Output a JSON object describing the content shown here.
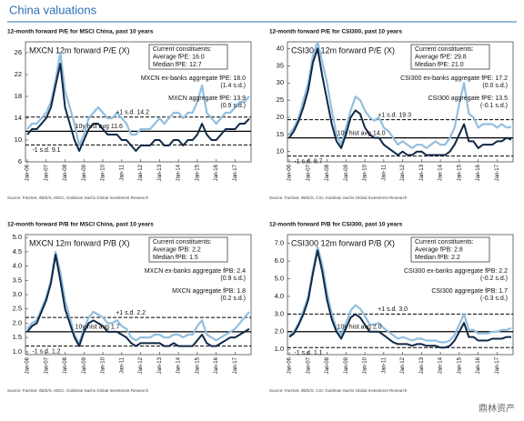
{
  "title": "China valuations",
  "watermark": "鼎林资产",
  "chart_data": [
    {
      "type": "line",
      "heading": "12-month forward P/E for MSCI China, past 10 years",
      "title": "MXCN 12m forward  P/E (X)",
      "source": "Source: FactSet, I/B/E/S, MSCI, Goldman Sachs Global Investment Research",
      "categories": [
        "Jan-06",
        null,
        null,
        null,
        "Jan-07",
        null,
        null,
        null,
        "Jan-08",
        null,
        null,
        null,
        "Jan-09",
        null,
        null,
        null,
        "Jan-10",
        null,
        null,
        null,
        "Jan-11",
        null,
        null,
        null,
        "Jan-12",
        null,
        null,
        null,
        "Jan-13",
        null,
        null,
        null,
        "Jan-14",
        null,
        null,
        null,
        "Jan-15",
        null,
        null,
        null,
        "Jan-16",
        null,
        null,
        null,
        "Jan-17",
        null,
        null,
        null
      ],
      "ylim": [
        6,
        28
      ],
      "yticks": [
        6,
        10,
        14,
        18,
        22,
        26
      ],
      "series": [
        {
          "color": "#93bfdf",
          "values": [
            12,
            13,
            13,
            14,
            15,
            17,
            21,
            26,
            19,
            16,
            13,
            9,
            11,
            14,
            15,
            16,
            15,
            14,
            14,
            15,
            14,
            13,
            11,
            11,
            12,
            12,
            12,
            13,
            14,
            13,
            14,
            15,
            15,
            14,
            15,
            15,
            17,
            20,
            15,
            14,
            13,
            14,
            15,
            15,
            16,
            17,
            17,
            18
          ]
        },
        {
          "color": "#0f2846",
          "values": [
            11,
            12,
            12,
            13,
            14,
            16,
            20,
            24,
            16,
            13,
            10,
            8,
            10,
            12,
            13,
            13,
            12,
            11,
            11,
            11,
            10,
            10,
            9,
            8,
            9,
            9,
            9,
            10,
            10,
            9,
            9,
            10,
            10,
            9,
            10,
            10,
            11,
            13,
            11,
            10,
            10,
            11,
            12,
            12,
            12,
            13,
            13,
            13.9
          ]
        }
      ],
      "reference_lines": [
        {
          "value": 11.6,
          "label": "10y hist  avg  11.6",
          "style": "solid"
        },
        {
          "value": 14.2,
          "label": "+1 s.d.  14.2",
          "style": "dashed"
        },
        {
          "value": 9.1,
          "label": "-1 s.d.  9.1",
          "style": "dashed"
        }
      ],
      "annotations": {
        "box": [
          "Current constituents:",
          "Average fPE:  16.0",
          "Median fPE:  12.7"
        ],
        "callouts": [
          "MXCN ex-banks aggregate fPE:  18.0",
          "(1.4 s.d.)",
          "MXCN aggregate fPE:  13.9",
          "(0.9 s.d.)"
        ]
      }
    },
    {
      "type": "line",
      "heading": "12-month forward P/E for CSI300, past 10 years",
      "title": "CSI300 12m forward  P/E (X)",
      "source": "Source: FactSet, I/B/E/S, CSI, Goldman Sachs Global Investment Research",
      "categories": [
        "Jan-06",
        null,
        null,
        null,
        "Jan-07",
        null,
        null,
        null,
        "Jan-08",
        null,
        null,
        null,
        "Jan-09",
        null,
        null,
        null,
        "Jan-10",
        null,
        null,
        null,
        "Jan-11",
        null,
        null,
        null,
        "Jan-12",
        null,
        null,
        null,
        "Jan-13",
        null,
        null,
        null,
        "Jan-14",
        null,
        null,
        null,
        "Jan-15",
        null,
        null,
        null,
        "Jan-16",
        null,
        null,
        null,
        "Jan-17",
        null,
        null,
        null
      ],
      "ylim": [
        7,
        42
      ],
      "yticks": [
        10,
        15,
        20,
        25,
        30,
        35,
        40
      ],
      "series": [
        {
          "color": "#93bfdf",
          "values": [
            15,
            17,
            20,
            25,
            30,
            38,
            42,
            36,
            30,
            22,
            15,
            12,
            17,
            22,
            26,
            25,
            22,
            20,
            19,
            20,
            17,
            16,
            14,
            12,
            13,
            12,
            11,
            12,
            12,
            11,
            12,
            13,
            12,
            12,
            14,
            17,
            24,
            30,
            21,
            20,
            17,
            18,
            18,
            18,
            17,
            18,
            17,
            17.2
          ]
        },
        {
          "color": "#0f2846",
          "values": [
            14,
            16,
            19,
            23,
            28,
            36,
            40,
            32,
            25,
            18,
            13,
            11,
            15,
            20,
            22,
            21,
            17,
            15,
            14,
            14,
            12,
            11,
            10,
            9,
            10,
            9,
            9,
            10,
            10,
            9,
            9,
            9,
            9,
            9,
            10,
            12,
            15,
            18,
            13,
            13,
            11,
            12,
            12,
            12,
            13,
            13,
            14,
            13.5
          ]
        }
      ],
      "reference_lines": [
        {
          "value": 14.0,
          "label": "10y hist  avg  14.0",
          "style": "solid"
        },
        {
          "value": 19.3,
          "label": "+1 s.d.  19.3",
          "style": "dashed"
        },
        {
          "value": 8.7,
          "label": "-1 s.d.  8.7",
          "style": "dashed"
        }
      ],
      "annotations": {
        "box": [
          "Current constituents:",
          "Average fPE:  29.8",
          "Median fPE:  21.0"
        ],
        "callouts": [
          "CSI300 ex-banks aggregate fPE:  17.2",
          "(0.0 s.d.)",
          "CSI300 aggregate fPE:  13.5",
          "(-0.1 s.d.)"
        ]
      }
    },
    {
      "type": "line",
      "heading": "12-month forward P/B for MSCI China, past 10 years",
      "title": "MXCN 12m forward  P/B (X)",
      "source": "Source: FactSet, I/B/E/S, MSCI, Goldman Sachs Global Investment Research",
      "categories": [
        "Jan-06",
        null,
        null,
        null,
        "Jan-07",
        null,
        null,
        null,
        "Jan-08",
        null,
        null,
        null,
        "Jan-09",
        null,
        null,
        null,
        "Jan-10",
        null,
        null,
        null,
        "Jan-11",
        null,
        null,
        null,
        "Jan-12",
        null,
        null,
        null,
        "Jan-13",
        null,
        null,
        null,
        "Jan-14",
        null,
        null,
        null,
        "Jan-15",
        null,
        null,
        null,
        "Jan-16",
        null,
        null,
        null,
        "Jan-17",
        null,
        null,
        null
      ],
      "ylim": [
        0.9,
        5.1
      ],
      "yticks": [
        {
          "value": 1,
          "label": "1.0"
        },
        1.5,
        {
          "value": 2,
          "label": "2.0"
        },
        2.5,
        {
          "value": 3,
          "label": "3.0"
        },
        3.5,
        {
          "value": 4,
          "label": "4.0"
        },
        4.5,
        {
          "value": 5,
          "label": "5.0"
        }
      ],
      "series": [
        {
          "color": "#93bfdf",
          "values": [
            1.8,
            2.0,
            2.1,
            2.5,
            2.9,
            3.5,
            4.5,
            3.8,
            2.8,
            2.2,
            1.6,
            1.3,
            1.8,
            2.2,
            2.4,
            2.3,
            2.2,
            2.0,
            2.0,
            2.1,
            1.9,
            1.8,
            1.5,
            1.4,
            1.5,
            1.5,
            1.5,
            1.6,
            1.6,
            1.5,
            1.5,
            1.6,
            1.6,
            1.5,
            1.6,
            1.6,
            1.9,
            2.1,
            1.6,
            1.5,
            1.4,
            1.5,
            1.6,
            1.7,
            1.8,
            2.0,
            2.2,
            2.4
          ]
        },
        {
          "color": "#0f2846",
          "values": [
            1.7,
            1.9,
            2.0,
            2.4,
            2.8,
            3.4,
            4.4,
            3.5,
            2.5,
            2.0,
            1.5,
            1.2,
            1.7,
            2.0,
            2.1,
            2.0,
            1.9,
            1.7,
            1.7,
            1.7,
            1.6,
            1.5,
            1.3,
            1.2,
            1.3,
            1.3,
            1.3,
            1.3,
            1.3,
            1.2,
            1.2,
            1.3,
            1.2,
            1.2,
            1.2,
            1.2,
            1.4,
            1.6,
            1.3,
            1.2,
            1.2,
            1.3,
            1.4,
            1.5,
            1.5,
            1.6,
            1.7,
            1.8
          ]
        }
      ],
      "reference_lines": [
        {
          "value": 1.7,
          "label": "10y hist  avg  1.7",
          "style": "solid"
        },
        {
          "value": 2.2,
          "label": "+1 s.d.  2.2",
          "style": "dashed"
        },
        {
          "value": 1.2,
          "label": "-1 s.d.  1.2",
          "style": "dashed"
        }
      ],
      "annotations": {
        "box": [
          "Current constituents:",
          "Average fPB:  2.2",
          "Median fPB:  1.5"
        ],
        "callouts": [
          "MXCN ex-banks aggregate fPB:  2.4",
          "(0.9 s.d.)",
          "MXCN aggregate fPB:  1.8",
          "(0.2 s.d.)"
        ]
      }
    },
    {
      "type": "line",
      "heading": "12-month forward P/B for CSI300, past 10 years",
      "title": "CSI300 12m forward  P/B (X)",
      "source": "Source: FactSet, I/B/E/S, CSI, Goldman Sachs Global Investment Research",
      "categories": [
        "Jan-06",
        null,
        null,
        null,
        "Jan-07",
        null,
        null,
        null,
        "Jan-08",
        null,
        null,
        null,
        "Jan-09",
        null,
        null,
        null,
        "Jan-10",
        null,
        null,
        null,
        "Jan-11",
        null,
        null,
        null,
        "Jan-12",
        null,
        null,
        null,
        "Jan-13",
        null,
        null,
        null,
        "Jan-14",
        null,
        null,
        null,
        "Jan-15",
        null,
        null,
        null,
        "Jan-16",
        null,
        null,
        null,
        "Jan-17",
        null,
        null,
        null
      ],
      "ylim": [
        0.7,
        7.5
      ],
      "yticks": [
        {
          "value": 1,
          "label": "1.0"
        },
        {
          "value": 2,
          "label": "2.0"
        },
        {
          "value": 3,
          "label": "3.0"
        },
        {
          "value": 4,
          "label": "4.0"
        },
        {
          "value": 5,
          "label": "5.0"
        },
        {
          "value": 6,
          "label": "6.0"
        },
        {
          "value": 7,
          "label": "7.0"
        }
      ],
      "series": [
        {
          "color": "#93bfdf",
          "values": [
            1.8,
            2.0,
            2.5,
            3.2,
            4.0,
            5.5,
            6.8,
            5.8,
            4.2,
            3.0,
            2.2,
            1.8,
            2.5,
            3.2,
            3.5,
            3.3,
            2.9,
            2.4,
            2.4,
            2.5,
            2.2,
            2.0,
            1.8,
            1.6,
            1.7,
            1.6,
            1.5,
            1.6,
            1.6,
            1.5,
            1.5,
            1.5,
            1.4,
            1.4,
            1.5,
            1.8,
            2.4,
            3.0,
            2.1,
            2.1,
            1.9,
            1.9,
            1.9,
            2.0,
            2.0,
            2.1,
            2.1,
            2.2
          ]
        },
        {
          "color": "#0f2846",
          "values": [
            1.7,
            1.9,
            2.4,
            3.0,
            3.8,
            5.3,
            6.6,
            5.4,
            3.8,
            2.7,
            2.0,
            1.6,
            2.2,
            2.8,
            3.0,
            2.8,
            2.4,
            2.0,
            2.0,
            2.0,
            1.8,
            1.6,
            1.4,
            1.3,
            1.3,
            1.3,
            1.2,
            1.3,
            1.3,
            1.2,
            1.2,
            1.2,
            1.1,
            1.1,
            1.2,
            1.5,
            2.0,
            2.5,
            1.7,
            1.7,
            1.5,
            1.5,
            1.5,
            1.6,
            1.6,
            1.6,
            1.7,
            1.7
          ]
        }
      ],
      "reference_lines": [
        {
          "value": 2.0,
          "label": "10y hist  avg  2.0",
          "style": "solid"
        },
        {
          "value": 3.0,
          "label": "+1 s.d.  3.0",
          "style": "dashed"
        },
        {
          "value": 1.1,
          "label": "-1 s.d.  1.1",
          "style": "dashed"
        }
      ],
      "annotations": {
        "box": [
          "Current constituents:",
          "Average fPB:  2.8",
          "Median fPB:  2.2"
        ],
        "callouts": [
          "CSI300 ex-banks aggregate fPB:  2.2",
          "(-0.2 s.d.)",
          "CSI300 aggregate fPB:  1.7",
          "(-0.3 s.d.)"
        ]
      }
    }
  ]
}
